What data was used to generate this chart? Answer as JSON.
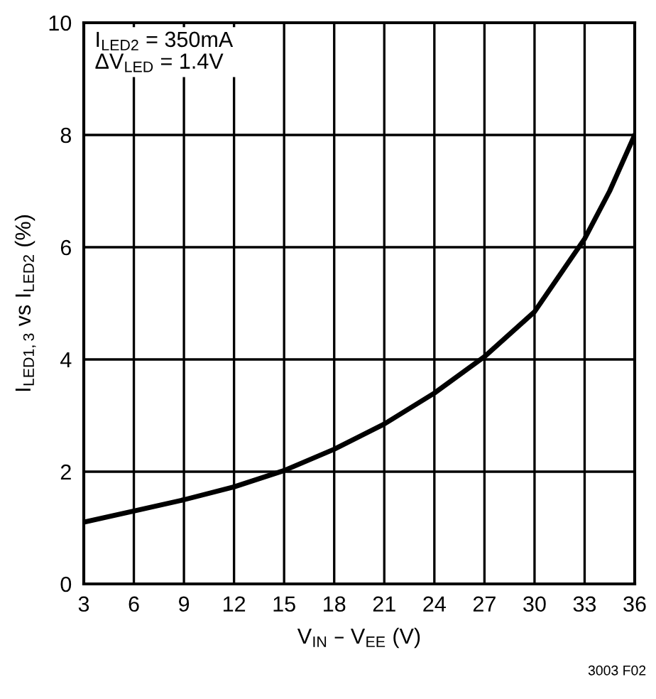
{
  "chart_data": {
    "type": "line",
    "xlabel": "V$_{IN}$ – V$_{EE}$ (V)",
    "ylabel": "I$_{LED1,3}$ vs I$_{LED2}$ (%)",
    "annotations": [
      "I$_{LED2}$ = 350mA\nΔV$_{LED}$ = 1.4V",
      "3003 F02"
    ],
    "x": [
      3,
      6,
      9,
      12,
      15,
      18,
      21,
      24,
      27,
      30,
      33,
      34.5,
      36
    ],
    "series": [
      {
        "color": "#000000",
        "values": [
          1.1,
          1.3,
          1.5,
          1.73,
          2.02,
          2.4,
          2.85,
          3.4,
          4.05,
          4.85,
          6.15,
          7.0,
          8.0
        ]
      }
    ],
    "xlim": [
      3,
      36
    ],
    "xticks": [
      3,
      6,
      9,
      12,
      15,
      18,
      21,
      24,
      27,
      30,
      33,
      36
    ],
    "ylim": [
      0,
      10
    ],
    "yticks": [
      0,
      2,
      4,
      6,
      8,
      10
    ],
    "grid": true,
    "marker": "none",
    "line_style": "solid"
  }
}
